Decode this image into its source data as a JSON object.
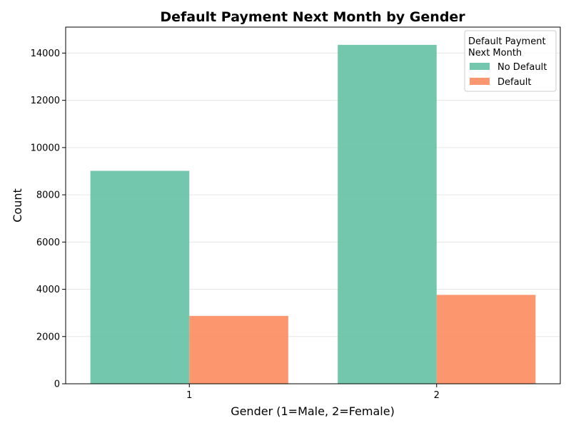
{
  "chart_data": {
    "type": "bar",
    "title": "Default Payment Next Month by Gender",
    "xlabel": "Gender (1=Male, 2=Female)",
    "ylabel": "Count",
    "categories": [
      "1",
      "2"
    ],
    "series": [
      {
        "name": "No Default",
        "color": "#66c2a5",
        "values": [
          9015,
          14349
        ]
      },
      {
        "name": "Default",
        "color": "#fc8d62",
        "values": [
          2873,
          3763
        ]
      }
    ],
    "ylim": [
      0,
      15100
    ],
    "yticks": [
      0,
      2000,
      4000,
      6000,
      8000,
      10000,
      12000,
      14000
    ],
    "grid": "y",
    "legend": {
      "title_lines": [
        "Default Payment",
        "Next Month"
      ],
      "placement": "top-right"
    }
  }
}
